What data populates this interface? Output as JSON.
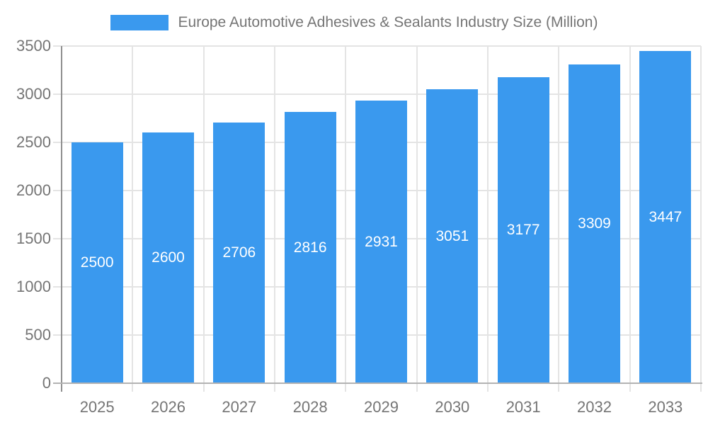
{
  "legend": {
    "position": "top-center",
    "swatch_icon": "series-color-swatch"
  },
  "colors": {
    "bar": "#3a99ee",
    "grid": "#e4e4e4",
    "axis_left": "#8f8f8f",
    "axis_bottom": "#b3b3b3",
    "text": "#757575",
    "bar_label": "#ffffff",
    "background": "#ffffff"
  },
  "chart_data": {
    "type": "bar",
    "title": "Europe Automotive Adhesives & Sealants Industry Size (Million)",
    "categories": [
      "2025",
      "2026",
      "2027",
      "2028",
      "2029",
      "2030",
      "2031",
      "2032",
      "2033"
    ],
    "values": [
      2500,
      2600,
      2706,
      2816,
      2931,
      3051,
      3177,
      3309,
      3447
    ],
    "series": [
      {
        "name": "Europe Automotive Adhesives & Sealants Industry Size (Million)",
        "values": [
          2500,
          2600,
          2706,
          2816,
          2931,
          3051,
          3177,
          3309,
          3447
        ]
      }
    ],
    "xlabel": "",
    "ylabel": "",
    "ylim": [
      0,
      3500
    ],
    "yticks": [
      0,
      500,
      1000,
      1500,
      2000,
      2500,
      3000,
      3500
    ],
    "grid": true,
    "legend_position": "top-center",
    "bar_value_labels": "inside-center-white"
  }
}
